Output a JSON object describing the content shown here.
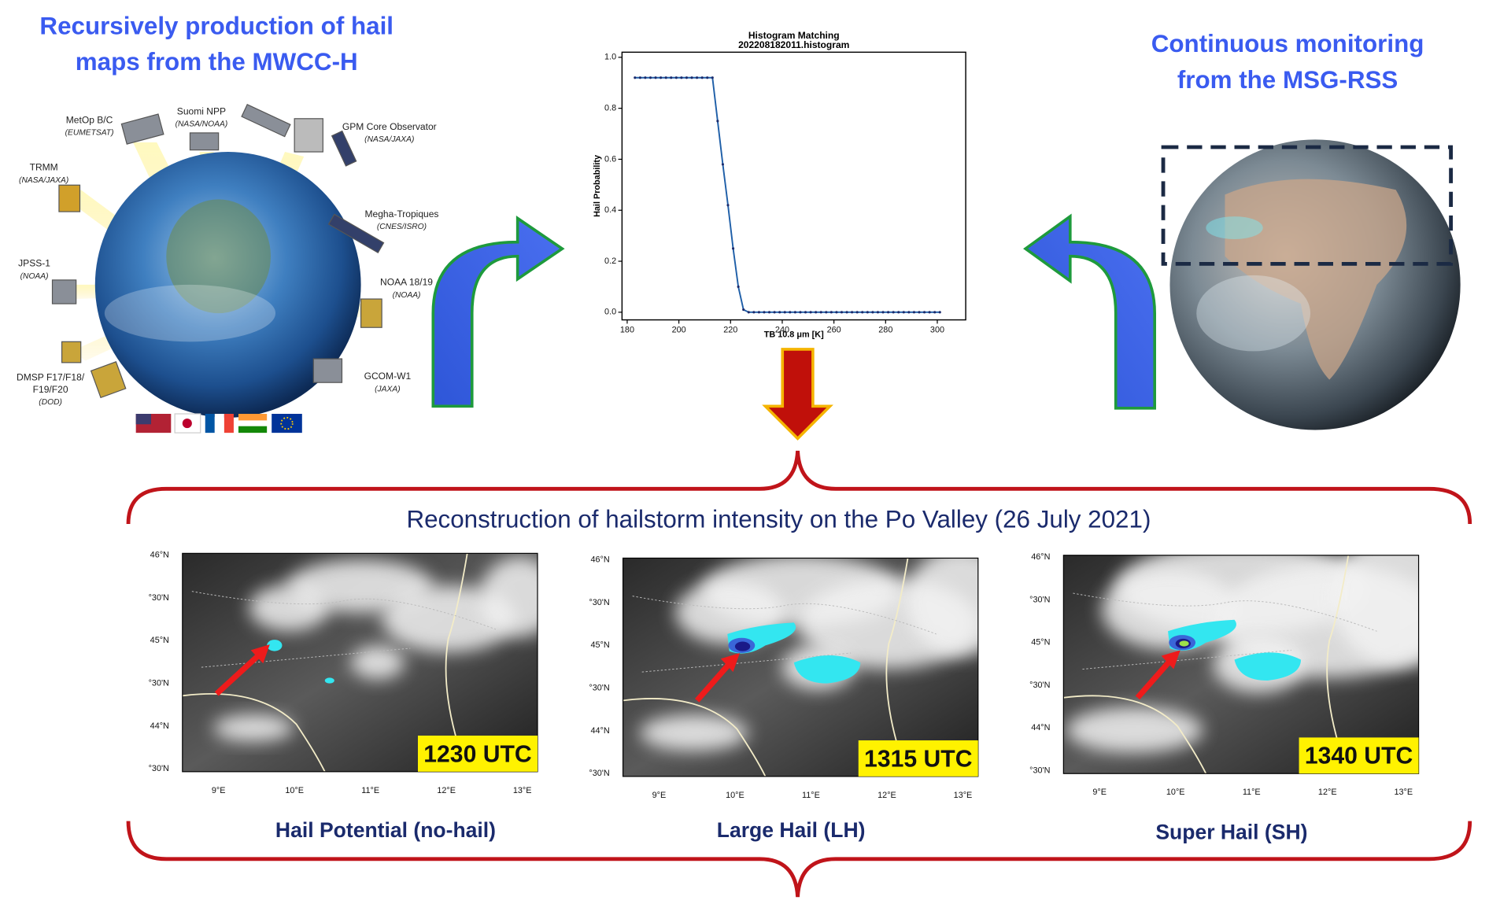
{
  "left_panel": {
    "title_lines": [
      "Recursively production of hail",
      "maps from the MWCC-H"
    ],
    "satellites": [
      {
        "name_lines": [
          "MetOp B/C"
        ],
        "agency": "(EUMETSAT)"
      },
      {
        "name_lines": [
          "Suomi NPP"
        ],
        "agency": "(NASA/NOAA)"
      },
      {
        "name_lines": [
          "GPM Core Observator"
        ],
        "agency": "(NASA/JAXA)"
      },
      {
        "name_lines": [
          "TRMM"
        ],
        "agency": "(NASA/JAXA)"
      },
      {
        "name_lines": [
          "Megha-Tropiques"
        ],
        "agency": "(CNES/ISRO)"
      },
      {
        "name_lines": [
          "JPSS-1"
        ],
        "agency": "(NOAA)"
      },
      {
        "name_lines": [
          "NOAA 18/19"
        ],
        "agency": "(NOAA)"
      },
      {
        "name_lines": [
          "DMSP F17/F18/",
          "F19/F20"
        ],
        "agency": "(DOD)"
      },
      {
        "name_lines": [
          "GCOM-W1"
        ],
        "agency": "(JAXA)"
      }
    ]
  },
  "chart_data": {
    "type": "line",
    "title": "Histogram Matching",
    "subtitle": "202208182011.histogram",
    "x_label": "TB 10.8 μm [K]",
    "y_label": "Hail Probability",
    "x": [
      183,
      185,
      187,
      189,
      191,
      193,
      195,
      197,
      199,
      201,
      203,
      205,
      207,
      209,
      211,
      213,
      215,
      217,
      219,
      221,
      223,
      225,
      227,
      229,
      231,
      233,
      235,
      237,
      239,
      241,
      243,
      245,
      247,
      249,
      251,
      253,
      255,
      257,
      259,
      261,
      263,
      265,
      267,
      269,
      271,
      273,
      275,
      277,
      279,
      281,
      283,
      285,
      287,
      289,
      291,
      293,
      295,
      297,
      299,
      301
    ],
    "series": [
      {
        "name": "Hail Probability",
        "color": "#1f5fa8",
        "values": [
          0.92,
          0.92,
          0.92,
          0.92,
          0.92,
          0.92,
          0.92,
          0.92,
          0.92,
          0.92,
          0.92,
          0.92,
          0.92,
          0.92,
          0.92,
          0.92,
          0.75,
          0.58,
          0.42,
          0.25,
          0.1,
          0.01,
          0,
          0,
          0,
          0,
          0,
          0,
          0,
          0,
          0,
          0,
          0,
          0,
          0,
          0,
          0,
          0,
          0,
          0,
          0,
          0,
          0,
          0,
          0,
          0,
          0,
          0,
          0,
          0,
          0,
          0,
          0,
          0,
          0,
          0,
          0,
          0,
          0,
          0
        ]
      }
    ],
    "xlim": [
      178,
      311
    ],
    "xticks": [
      180,
      200,
      220,
      240,
      260,
      280,
      300
    ],
    "ylim": [
      -0.03,
      1.02
    ],
    "yticks": [
      {
        "value": 0,
        "label": "0.0"
      },
      0.2,
      0.4,
      0.6,
      0.8,
      {
        "value": 1,
        "label": "1.0"
      }
    ]
  },
  "right_panel": {
    "title_lines": [
      "Continuous monitoring",
      "from the MSG-RSS"
    ]
  },
  "bottom": {
    "title": "Reconstruction of hailstorm intensity on the Po Valley (26 July 2021)",
    "latitude_labels": [
      "46°N",
      "°30'N",
      "45°N",
      "°30'N",
      "44°N",
      "°30'N"
    ],
    "longitude_labels": [
      "9°E",
      "10°E",
      "11°E",
      "12°E",
      "13°E"
    ],
    "maps": [
      {
        "time": "1230 UTC",
        "caption": "Hail Potential (no-hail)"
      },
      {
        "time": "1315 UTC",
        "caption": "Large Hail (LH)"
      },
      {
        "time": "1340 UTC",
        "caption": "Super Hail (SH)"
      }
    ]
  }
}
